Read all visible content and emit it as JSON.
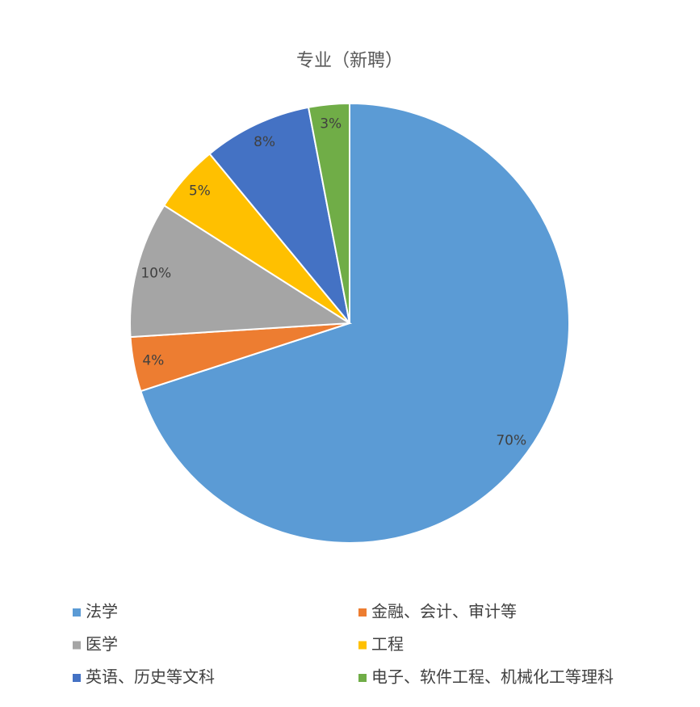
{
  "chart_data": {
    "type": "pie",
    "title": "专业（新聘）",
    "categories": [
      "法学",
      "金融、会计、审计等",
      "医学",
      "工程",
      "英语、历史等文科",
      "电子、软件工程、机械化工等理科"
    ],
    "values": [
      70,
      4,
      10,
      5,
      8,
      3
    ],
    "value_labels": [
      "70%",
      "4%",
      "10%",
      "5%",
      "8%",
      "3%"
    ],
    "colors": [
      "#5b9bd5",
      "#ed7d31",
      "#a5a5a5",
      "#ffc000",
      "#4472c4",
      "#70ad47"
    ]
  }
}
